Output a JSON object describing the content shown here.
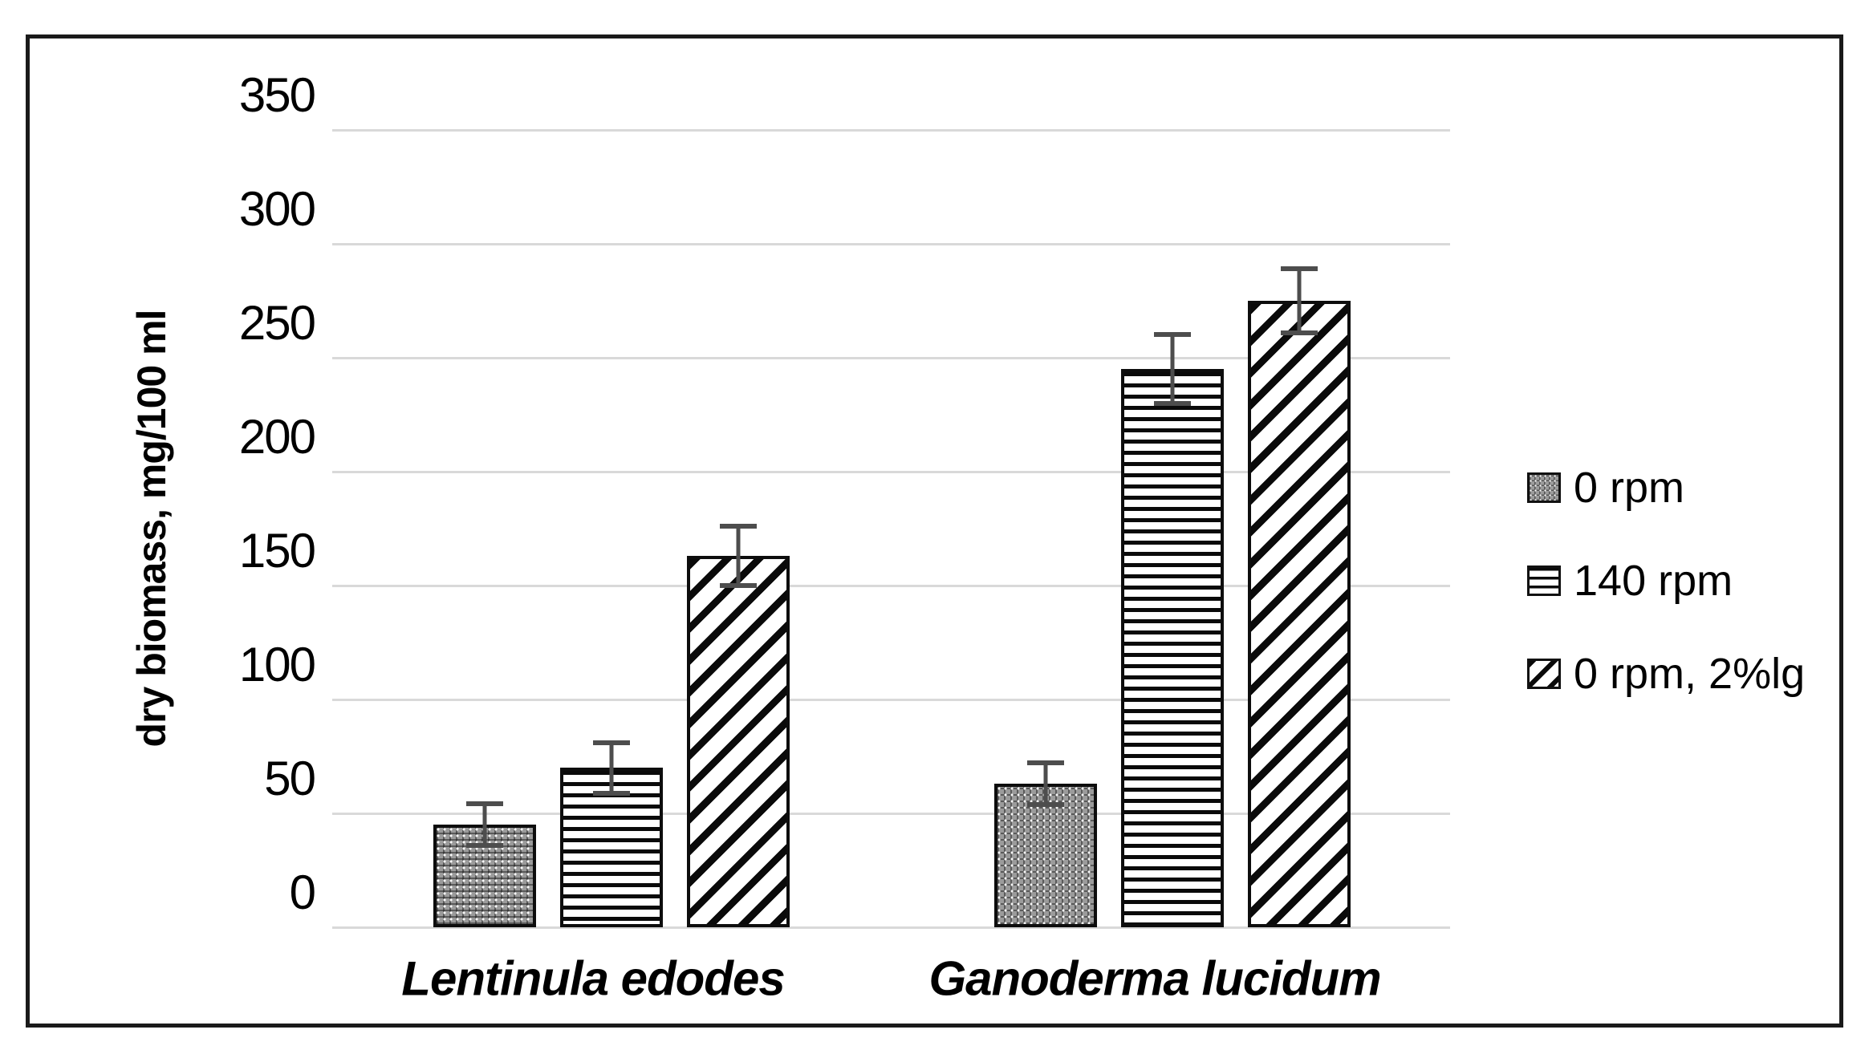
{
  "figure": {
    "background": "#ffffff",
    "frame_border_color": "#1a1a1a"
  },
  "chart_data": {
    "type": "bar",
    "title": "",
    "xlabel": "",
    "ylabel": "dry biomass, mg/100 ml",
    "categories": [
      "Lentinula edodes",
      "Ganoderma lucidum"
    ],
    "series": [
      {
        "name": "0 rpm",
        "pattern": "dotted-grid",
        "values": [
          45,
          63
        ],
        "errors": [
          8,
          8
        ]
      },
      {
        "name": "140 rpm",
        "pattern": "horizontal-stripes",
        "values": [
          70,
          245
        ],
        "errors": [
          10,
          14
        ]
      },
      {
        "name": "0 rpm, 2%lg",
        "pattern": "diagonal-stripes",
        "values": [
          163,
          275
        ],
        "errors": [
          12,
          13
        ]
      }
    ],
    "ylim": [
      0,
      350
    ],
    "yticks": [
      "0",
      "50",
      "100",
      "150",
      "200",
      "250",
      "300",
      "350"
    ],
    "grid": true,
    "gridline_color": "#d9d9d9",
    "bar_border_color": "#0d0d0d",
    "error_bar_color": "#4d4d4d",
    "legend_position": "right-middle"
  }
}
